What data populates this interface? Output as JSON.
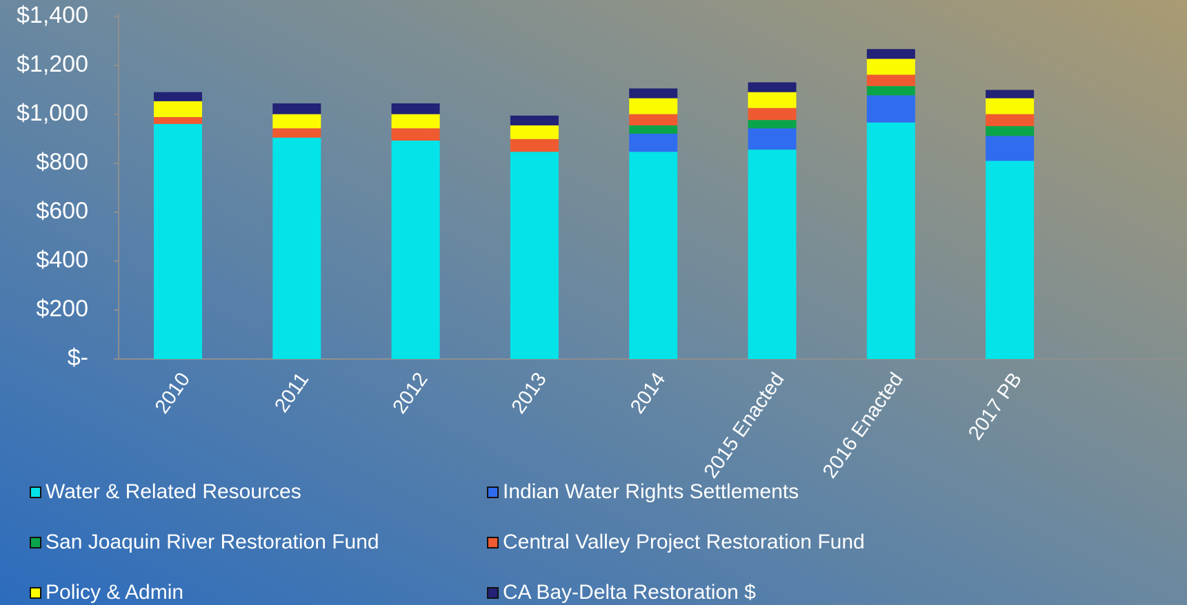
{
  "chart_data": {
    "type": "stacked_bar",
    "categories": [
      "2010",
      "2011",
      "2012",
      "2013",
      "2014",
      "2015 Enacted",
      "2016 Enacted",
      "2017 PB"
    ],
    "series": [
      {
        "name": "Water & Related Resources",
        "color": "#04e3e8",
        "values": [
          961,
          905,
          893,
          847,
          847,
          856,
          967,
          810
        ]
      },
      {
        "name": "Indian Water Rights Settlements",
        "color": "#2f6cf0",
        "values": [
          0,
          0,
          0,
          0,
          74,
          87,
          111,
          102
        ]
      },
      {
        "name": "San Joaquin River Restoration Fund",
        "color": "#0aa54a",
        "values": [
          0,
          0,
          0,
          0,
          34,
          34,
          38,
          40
        ]
      },
      {
        "name": "Central Valley Project Restoration Fund",
        "color": "#ef5a31",
        "values": [
          28,
          38,
          50,
          52,
          46,
          49,
          46,
          49
        ]
      },
      {
        "name": "Policy & Admin",
        "color": "#fcfc00",
        "values": [
          65,
          58,
          58,
          56,
          65,
          65,
          65,
          65
        ]
      },
      {
        "name": "CA Bay-Delta Restoration $",
        "color": "#222277",
        "values": [
          37,
          44,
          44,
          40,
          40,
          40,
          40,
          34
        ]
      }
    ],
    "ylim": [
      0,
      1400
    ],
    "yticks": [
      {
        "value": 0,
        "label": "$-"
      },
      {
        "value": 200,
        "label": "$200"
      },
      {
        "value": 400,
        "label": "$400"
      },
      {
        "value": 600,
        "label": "$600"
      },
      {
        "value": 800,
        "label": "$800"
      },
      {
        "value": 1000,
        "label": "$1,000"
      },
      {
        "value": 1200,
        "label": "$1,200"
      },
      {
        "value": 1400,
        "label": "$1,400"
      }
    ]
  }
}
